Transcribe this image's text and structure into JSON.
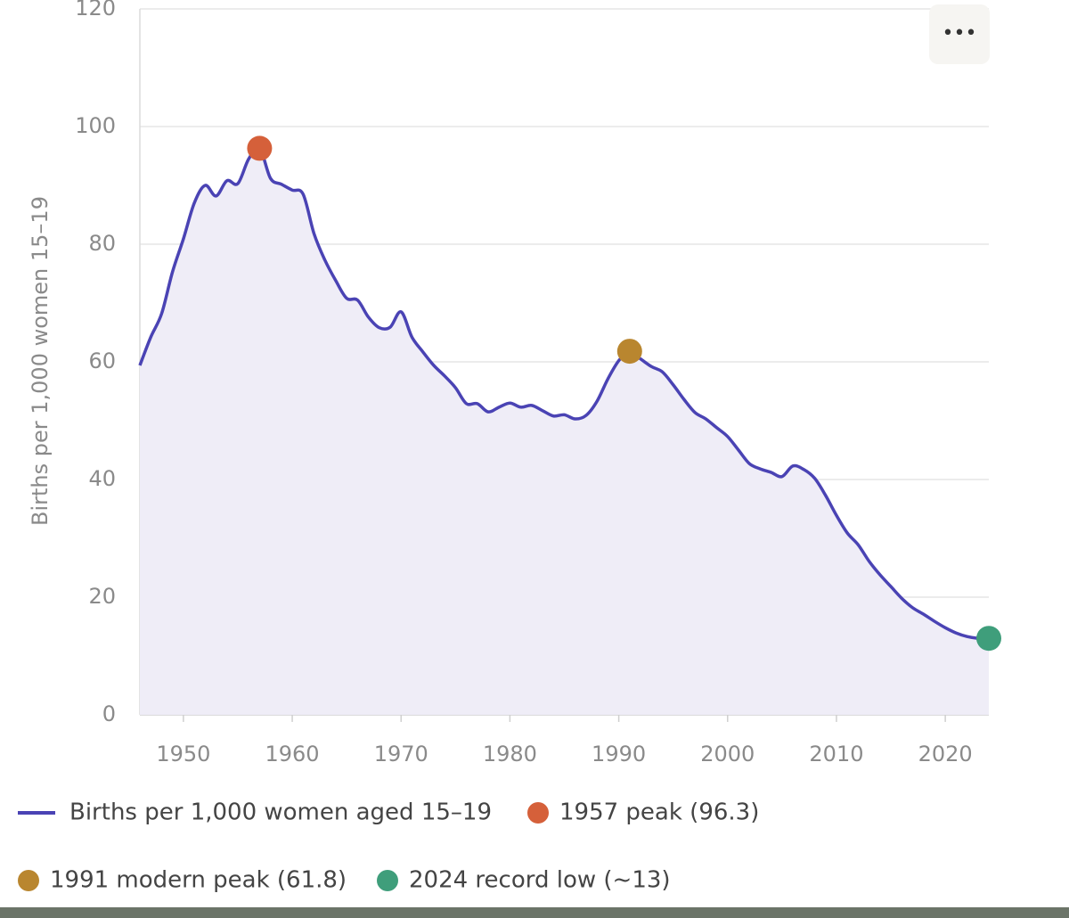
{
  "chart_data": {
    "type": "line",
    "menu": "•••",
    "y_label": "Births per 1,000 women 15–19",
    "xlim": [
      1946,
      2024
    ],
    "xticks": [
      1950,
      1960,
      1970,
      1980,
      1990,
      2000,
      2010,
      2020
    ],
    "ylim": [
      0,
      120
    ],
    "yticks": [
      0,
      20,
      40,
      60,
      80,
      100,
      120
    ],
    "grid": true,
    "legend": "bottom",
    "series": [
      {
        "name": "Births per 1,000 women aged 15–19",
        "color": "#4a43b4",
        "fill": "#efedf7",
        "kind": "line",
        "x": [
          1946,
          1947,
          1948,
          1949,
          1950,
          1951,
          1952,
          1953,
          1954,
          1955,
          1956,
          1957,
          1958,
          1959,
          1960,
          1961,
          1962,
          1963,
          1964,
          1965,
          1966,
          1967,
          1968,
          1969,
          1970,
          1971,
          1972,
          1973,
          1974,
          1975,
          1976,
          1977,
          1978,
          1979,
          1980,
          1981,
          1982,
          1983,
          1984,
          1985,
          1986,
          1987,
          1988,
          1989,
          1990,
          1991,
          1992,
          1993,
          1994,
          1995,
          1996,
          1997,
          1998,
          1999,
          2000,
          2001,
          2002,
          2003,
          2004,
          2005,
          2006,
          2007,
          2008,
          2009,
          2010,
          2011,
          2012,
          2013,
          2014,
          2015,
          2016,
          2017,
          2018,
          2019,
          2020,
          2021,
          2022,
          2023,
          2024
        ],
        "values": [
          59.4,
          64.2,
          68.2,
          75.3,
          80.9,
          87.0,
          90.0,
          88.2,
          90.8,
          90.3,
          94.5,
          96.3,
          91.2,
          90.2,
          89.2,
          88.5,
          81.8,
          77.3,
          73.8,
          70.8,
          70.5,
          67.6,
          65.8,
          65.9,
          68.5,
          64.2,
          61.7,
          59.4,
          57.6,
          55.6,
          52.9,
          52.9,
          51.5,
          52.3,
          53.0,
          52.3,
          52.6,
          51.7,
          50.8,
          51.0,
          50.3,
          50.9,
          53.3,
          57.1,
          60.2,
          61.8,
          60.5,
          59.2,
          58.3,
          56.1,
          53.6,
          51.4,
          50.3,
          48.8,
          47.3,
          45.0,
          42.7,
          41.8,
          41.2,
          40.5,
          42.3,
          41.7,
          40.2,
          37.3,
          33.9,
          30.9,
          28.9,
          26.1,
          23.8,
          21.8,
          19.8,
          18.2,
          17.1,
          15.9,
          14.8,
          13.9,
          13.3,
          13.0,
          13.0
        ]
      },
      {
        "name": "1957 peak (96.3)",
        "color": "#d5603a",
        "kind": "point",
        "x": [
          1957
        ],
        "values": [
          96.3
        ]
      },
      {
        "name": "1991 modern peak (61.8)",
        "color": "#b9862f",
        "kind": "point",
        "x": [
          1991
        ],
        "values": [
          61.8
        ]
      },
      {
        "name": "2024 record low (~13)",
        "color": "#3f9e7b",
        "kind": "point",
        "x": [
          2024
        ],
        "values": [
          13
        ]
      }
    ]
  }
}
